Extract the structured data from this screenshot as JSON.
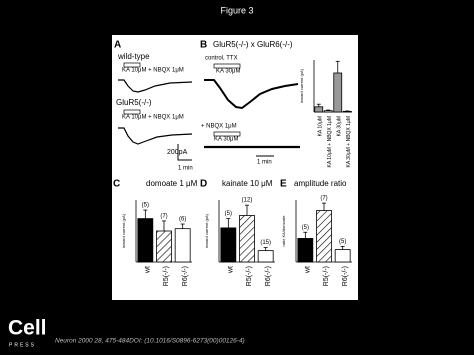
{
  "header": {
    "title": "Figure 3"
  },
  "panels": {
    "a": {
      "label": "A",
      "trace1_label": "wild-type",
      "trace1_stim": "KA 10μM + NBQX 1μM",
      "trace2_label": "GluR5(-/-)",
      "trace2_stim": "KA 10μM + NBQX 1μM",
      "scale_y": "200pA",
      "scale_x": "1 min"
    },
    "b": {
      "label": "B",
      "title": "GluR5(-/-) x GluR6(-/-)",
      "trace1_label": "control, TTX",
      "trace1_stim": "KA 30μM",
      "trace2_label": "+ NBQX 1μM",
      "trace2_stim": "KA 30μM",
      "scale_x": "1 min",
      "chart": {
        "y_label": "inward current (pA)",
        "categories": [
          "KA 10μM",
          "KA 10μM + NBQX 1μM",
          "KA 30μM",
          "KA 30μM + NBQX 1μM"
        ],
        "values": [
          40,
          10,
          300,
          5
        ],
        "errors": [
          20,
          5,
          90,
          3
        ],
        "ylim": [
          0,
          400
        ]
      }
    },
    "c": {
      "label": "C",
      "title": "domoate 1 μM",
      "y_label": "inward current (pA)",
      "categories": [
        "wt",
        "R5(-/-)",
        "R6(-/-)"
      ],
      "values": [
        560,
        400,
        430
      ],
      "errors": [
        110,
        130,
        60
      ],
      "n_labels": [
        "(5)",
        "(7)",
        "(6)"
      ],
      "ylim": [
        0,
        800
      ]
    },
    "d": {
      "label": "D",
      "title": "kainate 10 μM",
      "y_label": "inward current (pA)",
      "categories": [
        "wt",
        "R5(-/-)",
        "R6(-/-)"
      ],
      "values": [
        165,
        225,
        55
      ],
      "errors": [
        45,
        50,
        15
      ],
      "n_labels": [
        "(5)",
        "(12)",
        "(15)"
      ],
      "ylim": [
        0,
        300
      ]
    },
    "e": {
      "label": "E",
      "title": "amplitude ratio",
      "y_label": "ratio KA/domoate",
      "categories": [
        "wt",
        "R5(-/-)",
        "R6(-/-)"
      ],
      "values": [
        0.38,
        0.83,
        0.2
      ],
      "errors": [
        0.1,
        0.12,
        0.05
      ],
      "n_labels": [
        "(5)",
        "(7)",
        "(5)"
      ],
      "ylim": [
        0,
        1
      ]
    }
  },
  "footer": {
    "logo": "Cell",
    "logo_sub": "PRESS",
    "citation": "Neuron 2000 28, 475-484DOI: (10.1016/S0896-6273(00)00126-4)"
  }
}
